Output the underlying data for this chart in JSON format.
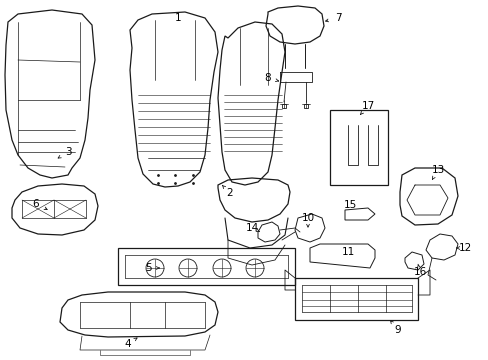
{
  "bg_color": "#ffffff",
  "line_color": "#1a1a1a",
  "text_color": "#000000",
  "figsize": [
    4.89,
    3.6
  ],
  "dpi": 100,
  "xlim": [
    0,
    489
  ],
  "ylim": [
    0,
    360
  ]
}
